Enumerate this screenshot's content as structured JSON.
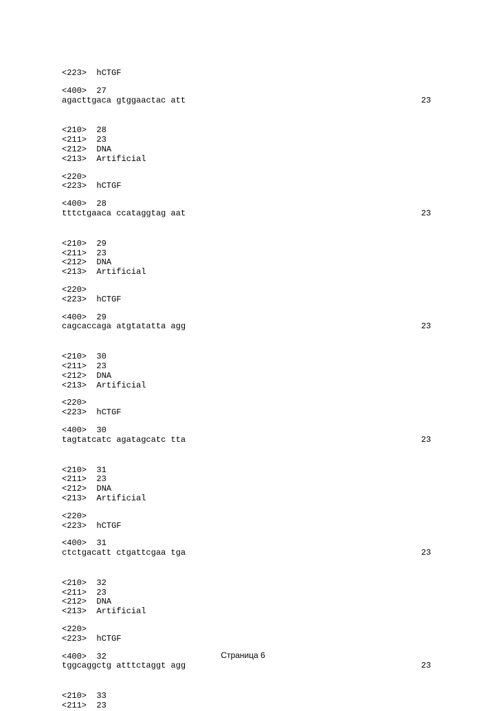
{
  "page": {
    "footer": "Страница 6"
  },
  "intro": {
    "l223": "<223>  hCTGF",
    "l400": "<400>  27",
    "seq": "agacttgaca gtggaactac att",
    "len": "23"
  },
  "entries": [
    {
      "l210": "<210>  28",
      "l211": "<211>  23",
      "l212": "<212>  DNA",
      "l213": "<213>  Artificial",
      "l220": "<220>",
      "l223": "<223>  hCTGF",
      "l400": "<400>  28",
      "seq": "tttctgaaca ccataggtag aat",
      "len": "23"
    },
    {
      "l210": "<210>  29",
      "l211": "<211>  23",
      "l212": "<212>  DNA",
      "l213": "<213>  Artificial",
      "l220": "<220>",
      "l223": "<223>  hCTGF",
      "l400": "<400>  29",
      "seq": "cagcaccaga atgtatatta agg",
      "len": "23"
    },
    {
      "l210": "<210>  30",
      "l211": "<211>  23",
      "l212": "<212>  DNA",
      "l213": "<213>  Artificial",
      "l220": "<220>",
      "l223": "<223>  hCTGF",
      "l400": "<400>  30",
      "seq": "tagtatcatc agatagcatc tta",
      "len": "23"
    },
    {
      "l210": "<210>  31",
      "l211": "<211>  23",
      "l212": "<212>  DNA",
      "l213": "<213>  Artificial",
      "l220": "<220>",
      "l223": "<223>  hCTGF",
      "l400": "<400>  31",
      "seq": "ctctgacatt ctgattcgaa tga",
      "len": "23"
    },
    {
      "l210": "<210>  32",
      "l211": "<211>  23",
      "l212": "<212>  DNA",
      "l213": "<213>  Artificial",
      "l220": "<220>",
      "l223": "<223>  hCTGF",
      "l400": "<400>  32",
      "seq": "tggcaggctg atttctaggt agg",
      "len": "23"
    }
  ],
  "tail": {
    "l210": "<210>  33",
    "l211": "<211>  23"
  }
}
